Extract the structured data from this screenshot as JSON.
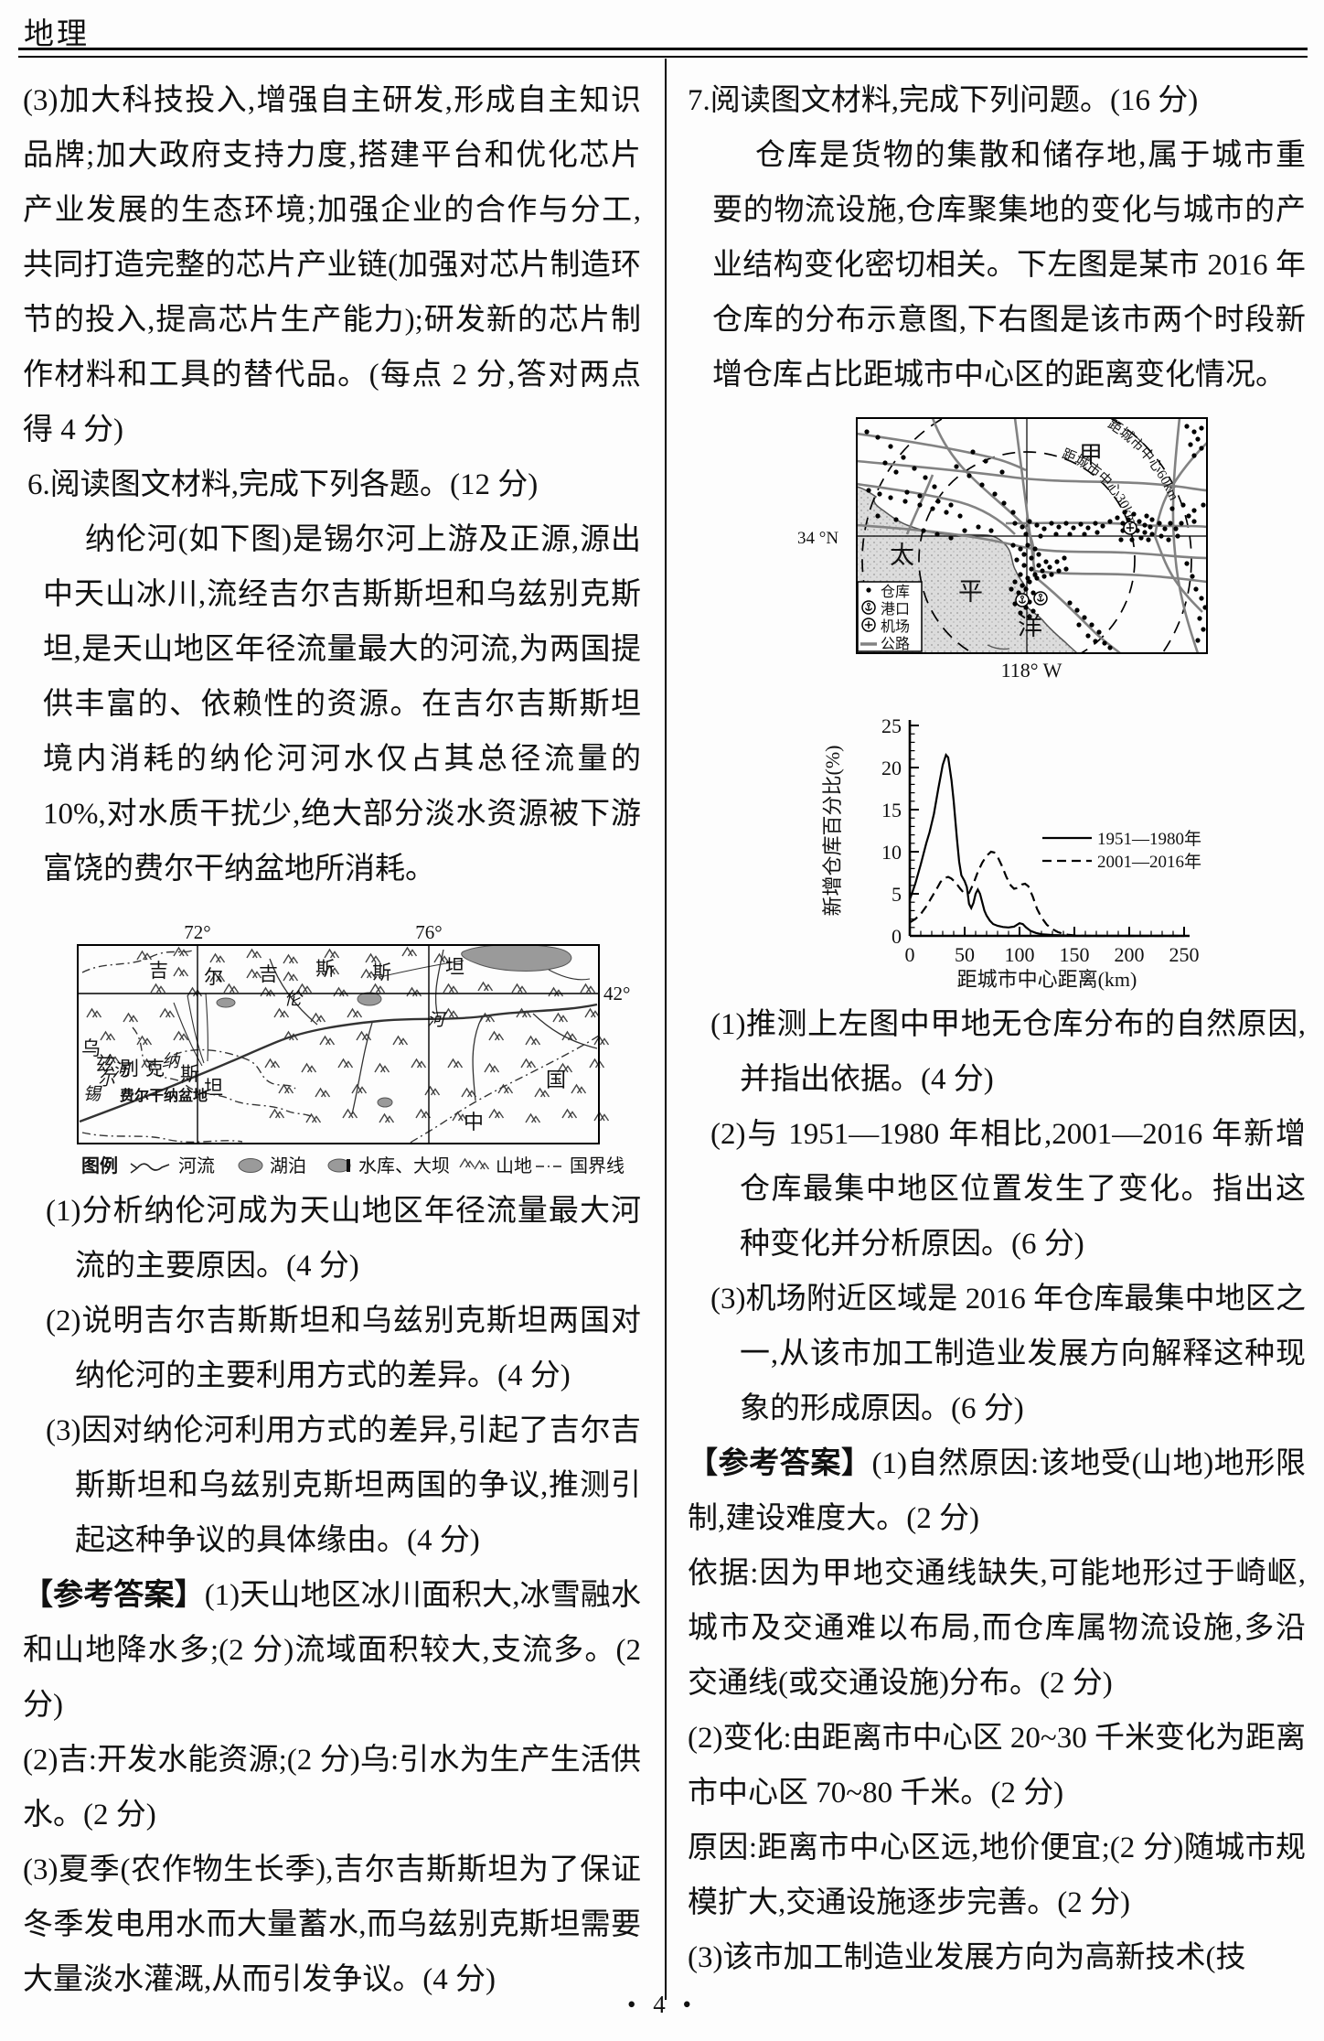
{
  "page": {
    "subject": "地理",
    "footer": "• 4 •"
  },
  "left_column": {
    "p3": "(3)加大科技投入,增强自主研发,形成自主知识品牌;加大政府支持力度,搭建平台和优化芯片产业发展的生态环境;加强企业的合作与分工,共同打造完整的芯片产业链(加强对芯片制造环节的投入,提高芯片生产能力);研发新的芯片制作材料和工具的替代品。(每点 2 分,答对两点得 4 分)",
    "q6_header": "6.阅读图文材料,完成下列各题。(12 分)",
    "q6_material": "纳伦河(如下图)是锡尔河上游及正源,源出中天山冰川,流经吉尔吉斯斯坦和乌兹别克斯坦,是天山地区年径流量最大的河流,为两国提供丰富的、依赖性的资源。在吉尔吉斯斯坦境内消耗的纳伦河河水仅占其总径流量的 10%,对水质干扰少,绝大部分淡水资源被下游富饶的费尔干纳盆地所消耗。",
    "map1": {
      "lon_left": "72°",
      "lon_right": "76°",
      "lat_right": "42°",
      "kyrgyzstan_chars": [
        "吉",
        "尔",
        "吉",
        "斯",
        "斯",
        "坦"
      ],
      "uzbekistan_chars": [
        "乌",
        "兹",
        "别",
        "克",
        "斯",
        "坦"
      ],
      "naryn_chars": [
        "纳",
        "伦",
        "河"
      ],
      "syr_chars": [
        "锡",
        "尔",
        "河"
      ],
      "basin_label": "费尔干纳盆地",
      "china_chars": [
        "中",
        "国"
      ],
      "legend_title": "图例",
      "legend_items": [
        "河流",
        "湖泊",
        "水库、大坝",
        "山地",
        "国界线"
      ]
    },
    "questions": [
      "(1)分析纳伦河成为天山地区年径流量最大河流的主要原因。(4 分)",
      "(2)说明吉尔吉斯斯坦和乌兹别克斯坦两国对纳伦河的主要利用方式的差异。(4 分)",
      "(3)因对纳伦河利用方式的差异,引起了吉尔吉斯斯坦和乌兹别克斯坦两国的争议,推测引起这种争议的具体缘由。(4 分)"
    ],
    "answer_label": "【参考答案】",
    "answers": [
      "(1)天山地区冰川面积大,冰雪融水和山地降水多;(2 分)流域面积较大,支流多。(2 分)",
      "(2)吉:开发水能资源;(2 分)乌:引水为生产生活供水。(2 分)",
      "(3)夏季(农作物生长季),吉尔吉斯斯坦为了保证冬季发电用水而大量蓄水,而乌兹别克斯坦需要大量淡水灌溉,从而引发争议。(4 分)"
    ]
  },
  "right_column": {
    "q7_header": "7.阅读图文材料,完成下列问题。(16 分)",
    "q7_material": "仓库是货物的集散和储存地,属于城市重要的物流设施,仓库聚集地的变化与城市的产业结构变化密切相关。下左图是某市 2016 年仓库的分布示意图,下右图是该市两个时段新增仓库占比距城市中心区的距离变化情况。",
    "map2": {
      "jia_label": "甲",
      "ring30_label": "距城市中心30km",
      "ring60_label": "距城市中心60km",
      "lat_label": "34 °N",
      "lon_label": "118° W",
      "ocean_chars": [
        "太",
        "平",
        "洋"
      ],
      "legend_items": [
        "仓库",
        "港口",
        "机场",
        "公路"
      ]
    },
    "questions": [
      "(1)推测上左图中甲地无仓库分布的自然原因,并指出依据。(4 分)",
      "(2)与 1951—1980 年相比,2001—2016 年新增仓库最集中地区位置发生了变化。指出这种变化并分析原因。(6 分)",
      "(3)机场附近区域是 2016 年仓库最集中地区之一,从该市加工制造业发展方向解释这种现象的形成原因。(6 分)"
    ],
    "answer_label": "【参考答案】",
    "answers": [
      "(1)自然原因:该地受(山地)地形限制,建设难度大。(2 分)",
      "依据:因为甲地交通线缺失,可能地形过于崎岖,城市及交通难以布局,而仓库属物流设施,多沿交通线(或交通设施)分布。(2 分)",
      "(2)变化:由距离市中心区 20~30 千米变化为距离市中心区 70~80 千米。(2 分)",
      "原因:距离市中心区远,地价便宜;(2 分)随城市规模扩大,交通设施逐步完善。(2 分)",
      "(3)该市加工制造业发展方向为高新技术(技"
    ]
  },
  "chart_data": {
    "type": "line",
    "title": "",
    "xlabel": "距城市中心距离(km)",
    "ylabel": "新增仓库百分比(%)",
    "xlim": [
      0,
      250
    ],
    "ylim": [
      0,
      25
    ],
    "xticks": [
      0,
      50,
      100,
      150,
      200,
      250
    ],
    "yticks": [
      0,
      5,
      10,
      15,
      20,
      25
    ],
    "x_minor_step": 10,
    "y_minor_step": 1,
    "grid": false,
    "legend_position": "right-middle",
    "series": [
      {
        "name": "1951—1980年",
        "style": "solid",
        "x": [
          0,
          5,
          10,
          15,
          18,
          22,
          26,
          30,
          33,
          35,
          38,
          40,
          43,
          45,
          47,
          50,
          52,
          54,
          56,
          58,
          60,
          62,
          64,
          66,
          68,
          70,
          73,
          76,
          80,
          85,
          90,
          95,
          100,
          103,
          106,
          110,
          115,
          120,
          130,
          140,
          150,
          175,
          200,
          225,
          250
        ],
        "y": [
          4.3,
          6.2,
          8.5,
          11,
          12.3,
          14.5,
          17.5,
          20.3,
          21.5,
          21.2,
          18.5,
          16,
          11.5,
          8.8,
          7.2,
          6.5,
          5.8,
          3.8,
          3.3,
          3.9,
          5,
          5.5,
          5,
          4,
          3,
          2.4,
          1.8,
          1.4,
          1.2,
          1.05,
          1,
          1.1,
          1.5,
          1.4,
          1,
          0.6,
          0.35,
          0.2,
          0.1,
          0.05,
          0,
          0,
          0,
          0,
          0
        ]
      },
      {
        "name": "2001—2016年",
        "style": "dashed",
        "x": [
          0,
          5,
          10,
          15,
          20,
          25,
          28,
          32,
          35,
          38,
          42,
          46,
          50,
          54,
          58,
          62,
          66,
          70,
          74,
          77,
          80,
          84,
          88,
          92,
          95,
          98,
          102,
          105,
          108,
          112,
          116,
          120,
          125,
          130,
          135,
          140,
          145,
          150,
          160,
          175,
          200,
          225,
          250
        ],
        "y": [
          1.6,
          2,
          2.6,
          3.5,
          4.6,
          5.7,
          6.4,
          6.9,
          7,
          6.8,
          6.3,
          5.6,
          5,
          5.1,
          6.2,
          7.6,
          8.7,
          9.5,
          10,
          9.9,
          9.4,
          8.3,
          7,
          6,
          5.6,
          5.7,
          6.1,
          6.2,
          5.9,
          4.7,
          3.2,
          2.2,
          1.3,
          0.8,
          0.45,
          0.25,
          0.12,
          0.05,
          0,
          0,
          0,
          0,
          0
        ]
      }
    ]
  }
}
